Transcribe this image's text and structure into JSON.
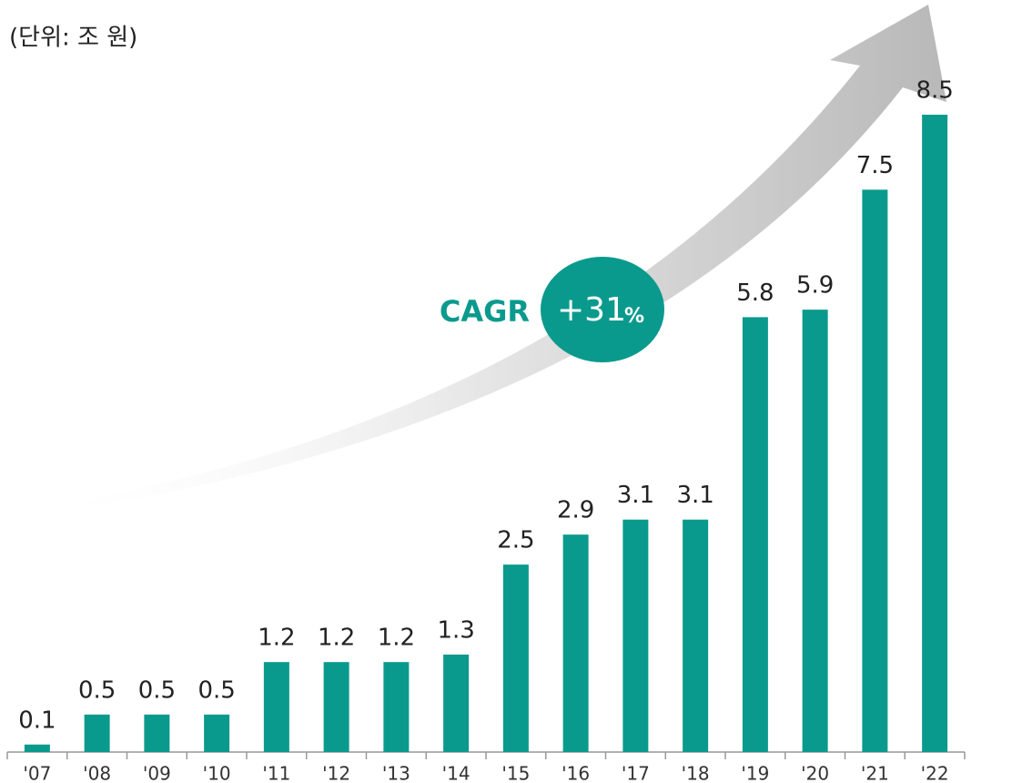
{
  "chart_data": {
    "type": "bar",
    "subtitle": "(단위: 조 원)",
    "annotation": {
      "label": "CAGR",
      "value": "+31",
      "unit": "%"
    },
    "categories": [
      "'07",
      "'08",
      "'09",
      "'10",
      "'11",
      "'12",
      "'13",
      "'14",
      "'15",
      "'16",
      "'17",
      "'18",
      "'19",
      "'20",
      "'21",
      "'22"
    ],
    "values": [
      0.1,
      0.5,
      0.5,
      0.5,
      1.2,
      1.2,
      1.2,
      1.3,
      2.5,
      2.9,
      3.1,
      3.1,
      5.8,
      5.9,
      7.5,
      8.5
    ],
    "color": "#0a9a8d",
    "ylim": [
      0,
      8.5
    ]
  }
}
